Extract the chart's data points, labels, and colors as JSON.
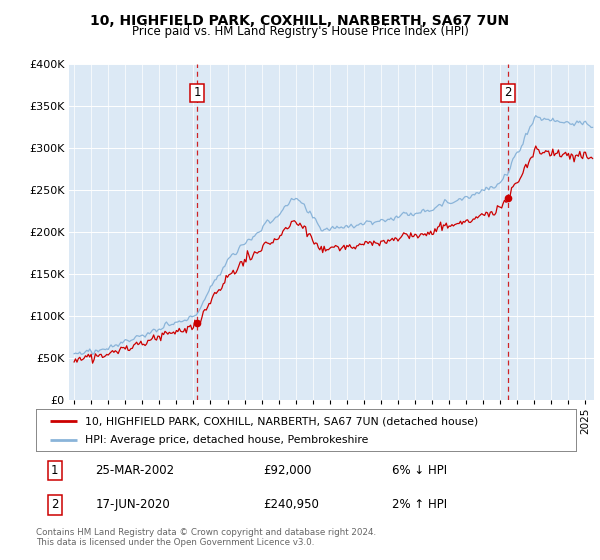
{
  "title": "10, HIGHFIELD PARK, COXHILL, NARBERTH, SA67 7UN",
  "subtitle": "Price paid vs. HM Land Registry's House Price Index (HPI)",
  "background_color": "#dce9f5",
  "plot_bg_color": "#dce9f5",
  "fig_bg_color": "#ffffff",
  "red_line_color": "#cc0000",
  "blue_line_color": "#8ab4d9",
  "sale1_date_num": 2002.21,
  "sale1_price": 92000,
  "sale2_date_num": 2020.46,
  "sale2_price": 240950,
  "legend_label1": "10, HIGHFIELD PARK, COXHILL, NARBERTH, SA67 7UN (detached house)",
  "legend_label2": "HPI: Average price, detached house, Pembrokeshire",
  "table_row1": [
    "1",
    "25-MAR-2002",
    "£92,000",
    "6% ↓ HPI"
  ],
  "table_row2": [
    "2",
    "17-JUN-2020",
    "£240,950",
    "2% ↑ HPI"
  ],
  "footnote": "Contains HM Land Registry data © Crown copyright and database right 2024.\nThis data is licensed under the Open Government Licence v3.0.",
  "ylim": [
    0,
    400000
  ],
  "xlim_start": 1994.7,
  "xlim_end": 2025.5,
  "yticks": [
    0,
    50000,
    100000,
    150000,
    200000,
    250000,
    300000,
    350000,
    400000
  ]
}
